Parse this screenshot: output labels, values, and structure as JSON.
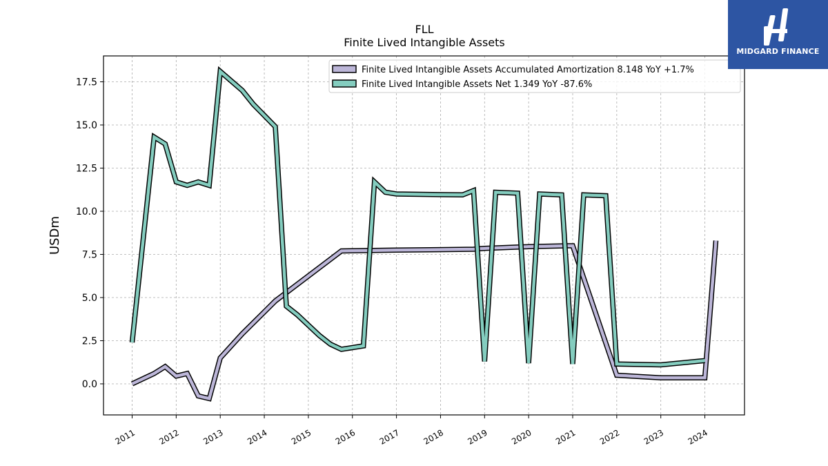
{
  "chart_data": {
    "type": "line",
    "title": "FLL",
    "subtitle": "Finite Lived Intangible Assets",
    "ylabel": "USDm",
    "xlabel": "",
    "xlim": [
      2010.35,
      2024.9
    ],
    "ylim": [
      -1.8,
      19.0
    ],
    "grid": true,
    "legend_position": "top-right",
    "x_ticks": [
      2011,
      2012,
      2013,
      2014,
      2015,
      2016,
      2017,
      2018,
      2019,
      2020,
      2021,
      2022,
      2023,
      2024
    ],
    "x_tick_labels": [
      "2011",
      "2012",
      "2013",
      "2014",
      "2015",
      "2016",
      "2017",
      "2018",
      "2019",
      "2020",
      "2021",
      "2022",
      "2023",
      "2024"
    ],
    "y_ticks": [
      0,
      2.5,
      5,
      7.5,
      10,
      12.5,
      15,
      17.5
    ],
    "y_tick_labels": [
      "0.0",
      "2.5",
      "5.0",
      "7.5",
      "10.0",
      "12.5",
      "15.0",
      "17.5"
    ],
    "series": [
      {
        "name": "Finite Lived Intangible Assets Accumulated Amortization  8.148 YoY +1.7%",
        "color": "#bcb6d8",
        "x": [
          2011.0,
          2011.5,
          2011.75,
          2012.0,
          2012.25,
          2012.5,
          2012.75,
          2013.0,
          2013.5,
          2014.25,
          2015.75,
          2017.0,
          2018.75,
          2019.0,
          2020.0,
          2020.9,
          2021.0,
          2022.0,
          2023.0,
          2024.0,
          2024.25
        ],
        "values": [
          0.0,
          0.6,
          1.0,
          0.45,
          0.6,
          -0.7,
          -0.85,
          1.5,
          2.9,
          4.8,
          7.7,
          7.75,
          7.8,
          7.85,
          7.95,
          8.0,
          8.0,
          0.5,
          0.35,
          0.35,
          8.3
        ]
      },
      {
        "name": "Finite Lived Intangible Assets Net  1.349 YoY -87.6%",
        "color": "#84cdbf",
        "x": [
          2011.0,
          2011.5,
          2011.75,
          2012.0,
          2012.25,
          2012.5,
          2012.75,
          2013.0,
          2013.5,
          2013.75,
          2014.25,
          2014.5,
          2014.75,
          2015.0,
          2015.25,
          2015.5,
          2015.75,
          2016.0,
          2016.25,
          2016.5,
          2016.75,
          2017.0,
          2018.5,
          2018.75,
          2019.0,
          2019.25,
          2019.75,
          2020.0,
          2020.25,
          2020.75,
          2021.0,
          2021.25,
          2021.75,
          2022.0,
          2023.0,
          2024.0
        ],
        "values": [
          2.4,
          14.3,
          13.9,
          11.7,
          11.5,
          11.7,
          11.5,
          18.1,
          17.0,
          16.2,
          14.9,
          4.5,
          4.0,
          3.4,
          2.8,
          2.3,
          2.0,
          2.1,
          2.2,
          11.7,
          11.1,
          11.0,
          10.95,
          11.2,
          1.3,
          11.1,
          11.05,
          1.2,
          11.0,
          10.95,
          1.15,
          10.95,
          10.9,
          1.15,
          1.1,
          1.35
        ]
      }
    ]
  },
  "logo": {
    "name": "MIDGARD FINANCE"
  }
}
